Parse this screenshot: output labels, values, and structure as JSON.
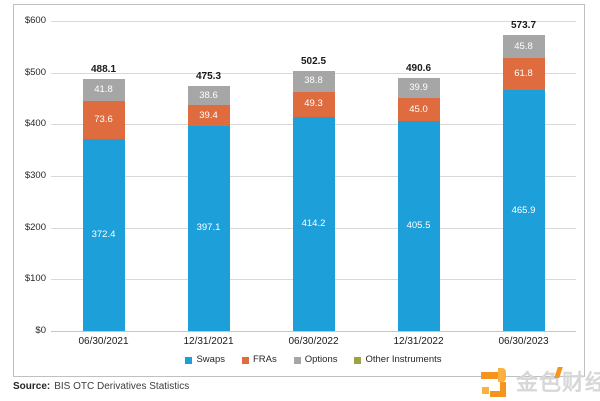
{
  "chart_data": {
    "type": "bar",
    "stacked": true,
    "title": "",
    "categories": [
      "06/30/2021",
      "12/31/2021",
      "06/30/2022",
      "12/31/2022",
      "06/30/2023"
    ],
    "series": [
      {
        "name": "Swaps",
        "color": "#1d9fda",
        "values": [
          372.4,
          397.1,
          414.2,
          405.5,
          465.9
        ]
      },
      {
        "name": "FRAs",
        "color": "#df6c3e",
        "values": [
          73.6,
          39.4,
          49.3,
          45.0,
          61.8
        ]
      },
      {
        "name": "Options",
        "color": "#a6a6a6",
        "values": [
          41.8,
          38.6,
          38.8,
          39.9,
          45.8
        ]
      },
      {
        "name": "Other Instruments",
        "color": "#9da343",
        "values": [
          null,
          null,
          null,
          null,
          null
        ]
      }
    ],
    "totals": [
      488.1,
      475.3,
      502.5,
      490.6,
      573.7
    ],
    "y_axis": {
      "min": 0,
      "max": 600,
      "tick_step": 100,
      "tick_labels": [
        "$0",
        "$100",
        "$200",
        "$300",
        "$400",
        "$500",
        "$600"
      ]
    },
    "grid": true,
    "legend_position": "bottom",
    "value_label_color": "#ffffff"
  },
  "source": {
    "label": "Source:",
    "text": "BIS OTC Derivatives Statistics"
  },
  "watermark": {
    "text": "金色财经",
    "accent_color": "#f7941d"
  }
}
